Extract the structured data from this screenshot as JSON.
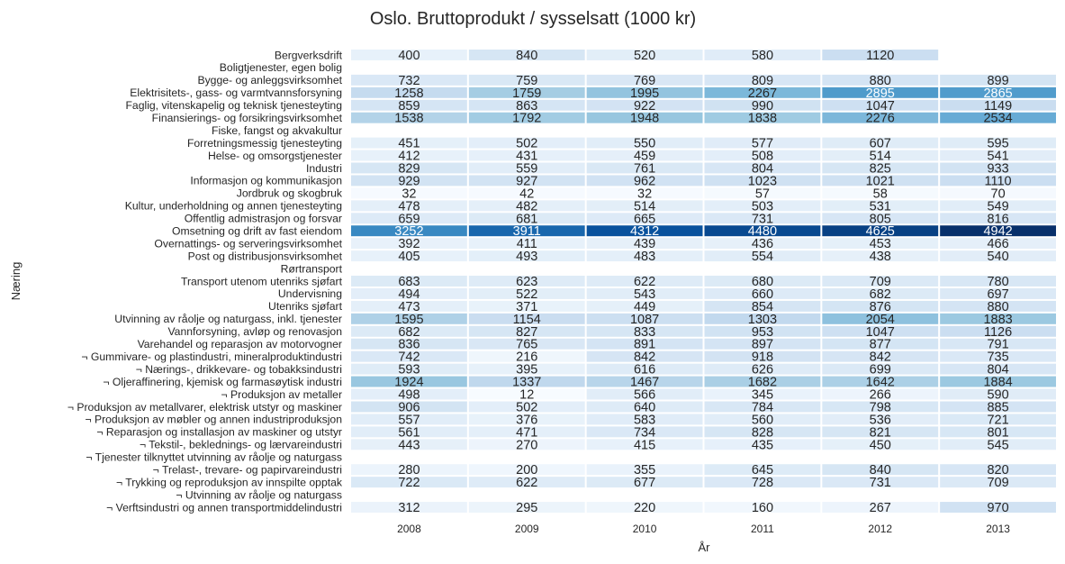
{
  "chart_data": {
    "type": "heatmap",
    "title": "Oslo. Bruttoprodukt / sysselsatt (1000 kr)",
    "xlabel": "År",
    "ylabel": "Næring",
    "colormap": "Blues",
    "vmin": 12,
    "vmax": 4942,
    "grid": false,
    "x": [
      "2008",
      "2009",
      "2010",
      "2011",
      "2012",
      "2013"
    ],
    "y": [
      "Bergverksdrift",
      "Boligtjenester, egen bolig",
      "Bygge- og anleggsvirksomhet",
      "Elektrisitets-, gass- og varmtvannsforsyning",
      "Faglig, vitenskapelig og teknisk tjenesteyting",
      "Finansierings- og forsikringsvirksomhet",
      "Fiske, fangst og akvakultur",
      "Forretningsmessig tjenesteyting",
      "Helse- og omsorgstjenester",
      "Industri",
      "Informasjon og kommunikasjon",
      "Jordbruk og skogbruk",
      "Kultur, underholdning og annen tjenesteyting",
      "Offentlig admistrasjon og forsvar",
      "Omsetning og drift av fast eiendom",
      "Overnattings- og serveringsvirksomhet",
      "Post og distribusjonsvirksomhet",
      "Rørtransport",
      "Transport utenom utenriks sjøfart",
      "Undervisning",
      "Utenriks sjøfart",
      "Utvinning av råolje og naturgass, inkl. tjenester",
      "Vannforsyning, avløp og renovasjon",
      "Varehandel og reparasjon av motorvogner",
      "¬ Gummivare- og plastindustri, mineralproduktindustri",
      "¬ Nærings-, drikkevare- og tobakksindustri",
      "¬ Oljeraffinering, kjemisk og farmasøytisk industri",
      "¬ Produksjon av metaller",
      "¬ Produksjon av metallvarer, elektrisk utstyr og maskiner",
      "¬ Produksjon av møbler og annen industriproduksjon",
      "¬ Reparasjon og installasjon av maskiner og utstyr",
      "¬ Tekstil-, beklednings- og lærvareindustri",
      "¬ Tjenester tilknyttet utvinning av råolje og naturgass",
      "¬ Trelast-, trevare- og papirvareindustri",
      "¬ Trykking og reproduksjon av innspilte opptak",
      "¬ Utvinning av råolje og naturgass",
      "¬ Verftsindustri og annen transportmiddelindustri"
    ],
    "values": [
      [
        400,
        840,
        520,
        580,
        1120,
        null
      ],
      [
        null,
        null,
        null,
        null,
        null,
        null
      ],
      [
        732,
        759,
        769,
        809,
        880,
        899
      ],
      [
        1258,
        1759,
        1995,
        2267,
        2895,
        2865
      ],
      [
        859,
        863,
        922,
        990,
        1047,
        1149
      ],
      [
        1538,
        1792,
        1948,
        1838,
        2276,
        2534
      ],
      [
        null,
        null,
        null,
        null,
        null,
        null
      ],
      [
        451,
        502,
        550,
        577,
        607,
        595
      ],
      [
        412,
        431,
        459,
        508,
        514,
        541
      ],
      [
        829,
        559,
        761,
        804,
        825,
        933
      ],
      [
        929,
        927,
        962,
        1023,
        1021,
        1110
      ],
      [
        32,
        42,
        32,
        57,
        58,
        70
      ],
      [
        478,
        482,
        514,
        503,
        531,
        549
      ],
      [
        659,
        681,
        665,
        731,
        805,
        816
      ],
      [
        3252,
        3911,
        4312,
        4480,
        4625,
        4942
      ],
      [
        392,
        411,
        439,
        436,
        453,
        466
      ],
      [
        405,
        493,
        483,
        554,
        438,
        540
      ],
      [
        null,
        null,
        null,
        null,
        null,
        null
      ],
      [
        683,
        623,
        622,
        680,
        709,
        780
      ],
      [
        494,
        522,
        543,
        660,
        682,
        697
      ],
      [
        473,
        371,
        449,
        854,
        876,
        880
      ],
      [
        1595,
        1154,
        1087,
        1303,
        2054,
        1883
      ],
      [
        682,
        827,
        833,
        953,
        1047,
        1126
      ],
      [
        836,
        765,
        891,
        897,
        877,
        791
      ],
      [
        742,
        216,
        842,
        918,
        842,
        735
      ],
      [
        593,
        395,
        616,
        626,
        699,
        804
      ],
      [
        1924,
        1337,
        1467,
        1682,
        1642,
        1884
      ],
      [
        498,
        12,
        566,
        345,
        266,
        590
      ],
      [
        906,
        502,
        640,
        784,
        798,
        885
      ],
      [
        557,
        376,
        583,
        560,
        536,
        721
      ],
      [
        561,
        471,
        734,
        828,
        821,
        801
      ],
      [
        443,
        270,
        415,
        435,
        450,
        545
      ],
      [
        null,
        null,
        null,
        null,
        null,
        null
      ],
      [
        280,
        200,
        355,
        645,
        840,
        820
      ],
      [
        722,
        622,
        677,
        728,
        731,
        709
      ],
      [
        null,
        null,
        null,
        null,
        null,
        null
      ],
      [
        312,
        295,
        220,
        160,
        267,
        970
      ]
    ]
  }
}
